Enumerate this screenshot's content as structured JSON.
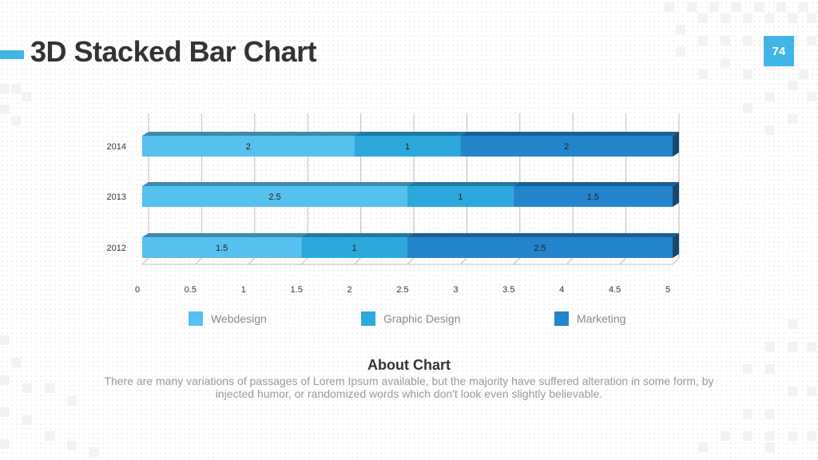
{
  "title": "3D Stacked Bar Chart",
  "page_number": "74",
  "colors": {
    "accent": "#41b6e6",
    "webdesign": "#56c0ee",
    "graphic_design": "#2ca8dc",
    "marketing": "#2385cc"
  },
  "about": {
    "heading": "About Chart",
    "body": "There are many variations of passages of Lorem Ipsum available, but the majority have suffered alteration in some form, by injected humor, or randomized words which don't look even slightly believable."
  },
  "chart_data": {
    "type": "bar",
    "orientation": "horizontal",
    "stacked": true,
    "three_d": true,
    "categories": [
      "2014",
      "2013",
      "2012"
    ],
    "series": [
      {
        "name": "Webdesign",
        "values": [
          2,
          2.5,
          1.5
        ],
        "color": "#56c0ee"
      },
      {
        "name": "Graphic Design",
        "values": [
          1,
          1,
          1
        ],
        "color": "#2ca8dc"
      },
      {
        "name": "Marketing",
        "values": [
          2,
          1.5,
          2.5
        ],
        "color": "#2385cc"
      }
    ],
    "xlim": [
      0,
      5
    ],
    "xticks": [
      "0",
      "0.5",
      "1",
      "1.5",
      "2",
      "2.5",
      "3",
      "3.5",
      "4",
      "4.5",
      "5"
    ],
    "data_labels": true,
    "grid": true,
    "legend_position": "bottom"
  }
}
